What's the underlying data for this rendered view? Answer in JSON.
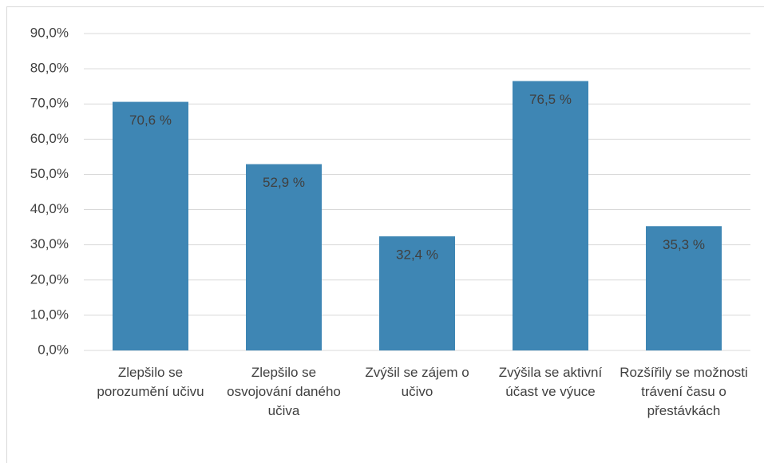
{
  "chart_data": {
    "type": "bar",
    "categories": [
      "Zlepšilo se porozumění učivu",
      "Zlepšilo se osvojování daného učiva",
      "Zvýšil se zájem o učivo",
      "Zvýšila se aktivní účast ve výuce",
      "Rozšířily se možnosti trávení času o přestávkách"
    ],
    "values": [
      70.6,
      52.9,
      32.4,
      76.5,
      35.3
    ],
    "value_labels": [
      "70,6 %",
      "52,9 %",
      "32,4 %",
      "76,5 %",
      "35,3 %"
    ],
    "color": "#3e86b4",
    "ylim": [
      0,
      90
    ],
    "yticks": [
      {
        "value": 0,
        "label": "0,0%"
      },
      {
        "value": 10,
        "label": "10,0%"
      },
      {
        "value": 20,
        "label": "20,0%"
      },
      {
        "value": 30,
        "label": "30,0%"
      },
      {
        "value": 40,
        "label": "40,0%"
      },
      {
        "value": 50,
        "label": "50,0%"
      },
      {
        "value": 60,
        "label": "60,0%"
      },
      {
        "value": 70,
        "label": "70,0%"
      },
      {
        "value": 80,
        "label": "80,0%"
      },
      {
        "value": 90,
        "label": "90,0%"
      }
    ],
    "grid": true
  }
}
